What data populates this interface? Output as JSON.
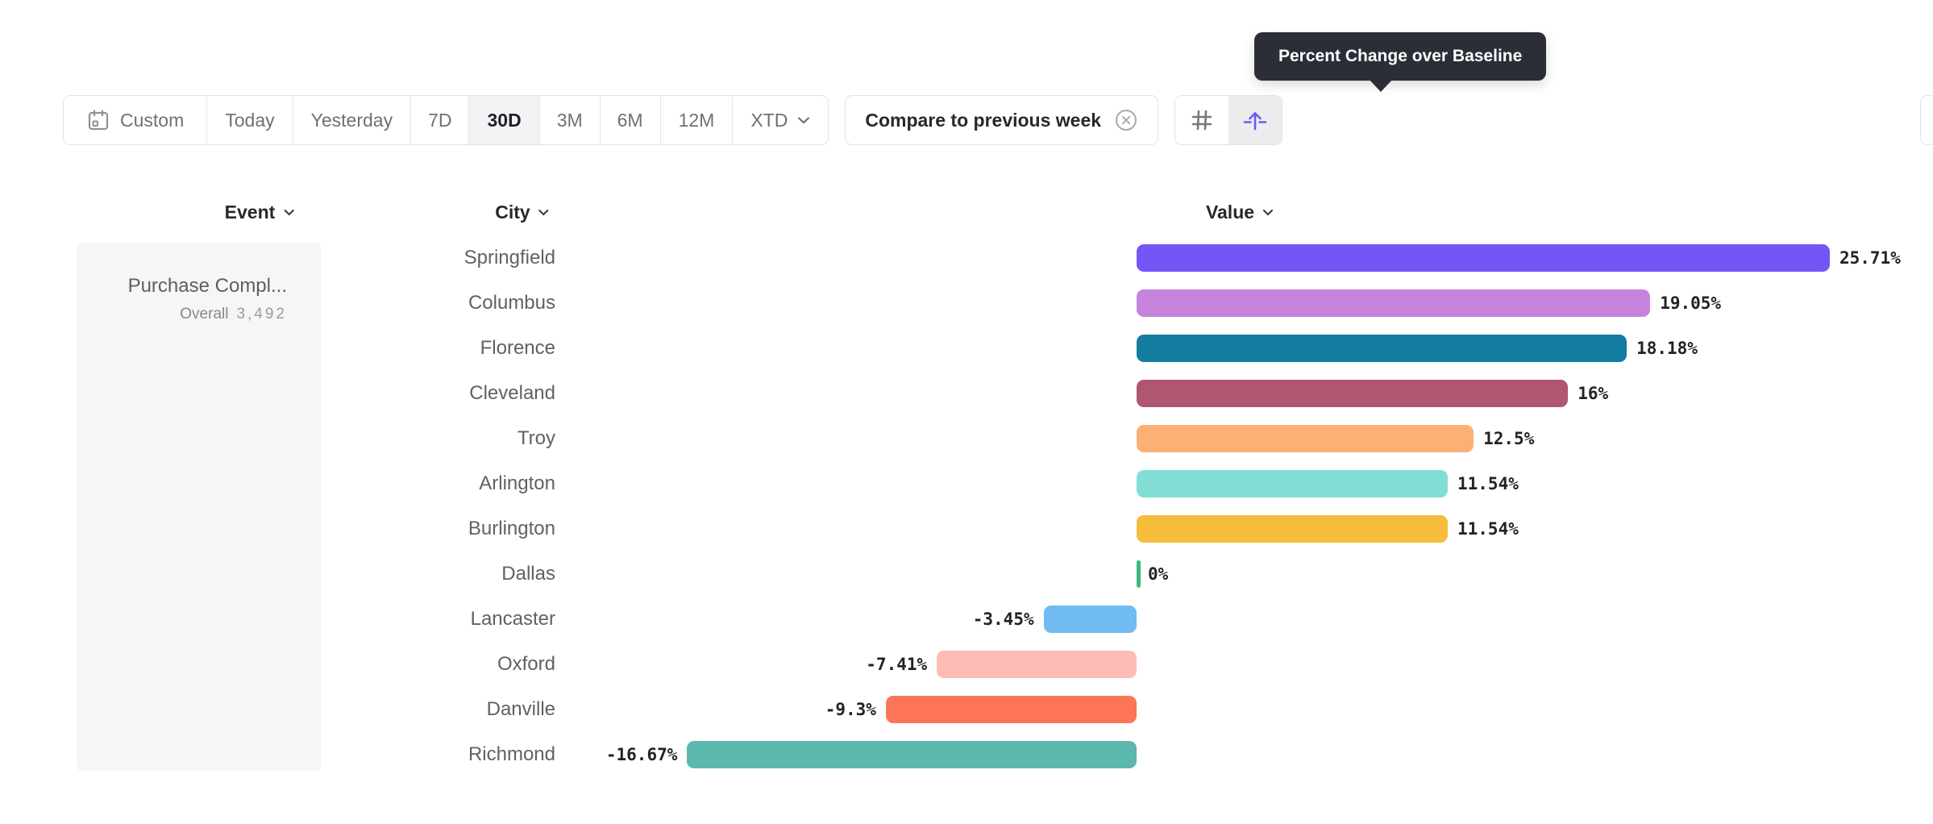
{
  "tooltip": {
    "text": "Percent Change over Baseline",
    "bg_color": "#2B2D37"
  },
  "toolbar": {
    "date_ranges": [
      {
        "label": "Custom",
        "icon": "calendar-icon",
        "selected": false
      },
      {
        "label": "Today",
        "selected": false
      },
      {
        "label": "Yesterday",
        "selected": false
      },
      {
        "label": "7D",
        "selected": false
      },
      {
        "label": "30D",
        "selected": true
      },
      {
        "label": "3M",
        "selected": false
      },
      {
        "label": "6M",
        "selected": false
      },
      {
        "label": "12M",
        "selected": false
      },
      {
        "label": "XTD",
        "icon": "chevron-down-icon",
        "selected": false
      }
    ],
    "compare": {
      "label": "Compare to previous week",
      "dismiss_icon": "circle-x-icon"
    },
    "view_toggles": [
      {
        "icon": "hash-icon",
        "selected": false
      },
      {
        "icon": "arrow-up-from-baseline-icon",
        "selected": true,
        "accent_color": "#6C5BF2"
      }
    ]
  },
  "columns": {
    "event": "Event",
    "city": "City",
    "value": "Value"
  },
  "event_panel": {
    "name": "Purchase Compl...",
    "overall_label": "Overall",
    "overall_value": "3,492"
  },
  "chart_data": {
    "type": "bar",
    "orientation": "horizontal",
    "title": "Percent Change over Baseline",
    "categories": [
      "Springfield",
      "Columbus",
      "Florence",
      "Cleveland",
      "Troy",
      "Arlington",
      "Burlington",
      "Dallas",
      "Lancaster",
      "Oxford",
      "Danville",
      "Richmond"
    ],
    "values": [
      25.71,
      19.05,
      18.18,
      16,
      12.5,
      11.54,
      11.54,
      0,
      -3.45,
      -7.41,
      -9.3,
      -16.67
    ],
    "labels": [
      "25.71%",
      "19.05%",
      "18.18%",
      "16%",
      "12.5%",
      "11.54%",
      "11.54%",
      "0%",
      "-3.45%",
      "-7.41%",
      "-9.3%",
      "-16.67%"
    ],
    "colors": [
      "#7456F6",
      "#C583DC",
      "#147C9F",
      "#AF5670",
      "#FDB076",
      "#82DED4",
      "#F6BC3C",
      "#3CB878",
      "#6FBBF2",
      "#FDBCB4",
      "#FD7557",
      "#5CB7AC"
    ],
    "xlim": [
      -16.67,
      25.71
    ],
    "grid": false,
    "value_label_position": "outside-end",
    "zero_marker_color": "#3CB878"
  }
}
